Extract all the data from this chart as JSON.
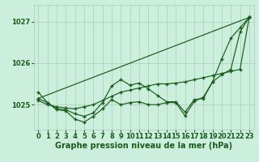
{
  "background_color": "#cceedd",
  "grid_color": "#aaccbb",
  "line_color": "#1a5c1a",
  "xlabel": "Graphe pression niveau de la mer (hPa)",
  "xlabel_fontsize": 7,
  "tick_fontsize": 6,
  "yticks": [
    1025,
    1026,
    1027
  ],
  "ylim": [
    1024.4,
    1027.4
  ],
  "xlim": [
    -0.5,
    23.5
  ],
  "xticks": [
    0,
    1,
    2,
    3,
    4,
    5,
    6,
    7,
    8,
    9,
    10,
    11,
    12,
    13,
    14,
    15,
    16,
    17,
    18,
    19,
    20,
    21,
    22,
    23
  ],
  "line1_x": [
    0,
    1,
    2,
    3,
    4,
    5,
    6,
    7,
    8,
    9,
    10,
    11,
    12,
    13,
    14,
    15,
    16,
    17,
    18,
    19,
    20,
    21,
    22,
    23
  ],
  "line1_y": [
    1025.1,
    1025.0,
    1024.95,
    1024.92,
    1024.9,
    1024.95,
    1025.0,
    1025.1,
    1025.2,
    1025.3,
    1025.35,
    1025.4,
    1025.45,
    1025.5,
    1025.5,
    1025.52,
    1025.55,
    1025.6,
    1025.65,
    1025.7,
    1025.75,
    1025.8,
    1025.85,
    1027.1
  ],
  "line2_x": [
    0,
    1,
    2,
    3,
    4,
    5,
    6,
    7,
    8,
    9,
    10,
    11,
    12,
    13,
    14,
    15,
    16,
    17,
    18,
    19,
    20,
    21,
    22,
    23
  ],
  "line2_y": [
    1025.3,
    1025.05,
    1024.9,
    1024.88,
    1024.78,
    1024.72,
    1024.8,
    1025.05,
    1025.45,
    1025.6,
    1025.47,
    1025.52,
    1025.38,
    1025.22,
    1025.07,
    1025.07,
    1024.82,
    1025.12,
    1025.15,
    1025.55,
    1026.1,
    1026.6,
    1026.85,
    1027.1
  ],
  "line3_x": [
    0,
    1,
    2,
    3,
    4,
    5,
    6,
    7,
    8,
    9,
    10,
    11,
    12,
    13,
    14,
    15,
    16,
    17,
    18,
    19,
    20,
    21,
    22,
    23
  ],
  "line3_y": [
    1025.15,
    1025.05,
    1024.88,
    1024.85,
    1024.65,
    1024.58,
    1024.72,
    1024.9,
    1025.12,
    1025.0,
    1025.05,
    1025.07,
    1025.0,
    1025.0,
    1025.05,
    1025.05,
    1024.73,
    1025.08,
    1025.18,
    1025.55,
    1025.72,
    1025.85,
    1026.75,
    1027.1
  ],
  "line4_x": [
    0,
    23
  ],
  "line4_y": [
    1025.15,
    1027.1
  ]
}
